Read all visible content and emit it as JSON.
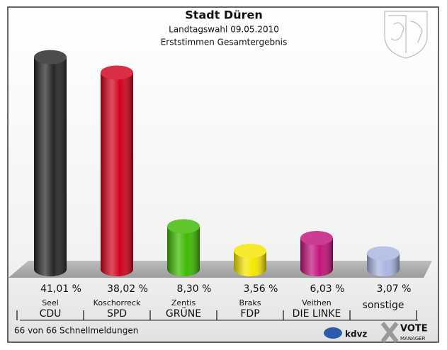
{
  "chart_data": {
    "type": "bar",
    "title": "Stadt Düren",
    "subtitle": [
      "Landtagswahl 09.05.2010",
      "Erststimmen Gesamtergebnis"
    ],
    "categories": [
      "CDU",
      "SPD",
      "GRÜNE",
      "FDP",
      "DIE LINKE",
      "sonstige"
    ],
    "candidates": [
      "Seel",
      "Koschorreck",
      "Zentis",
      "Braks",
      "Veithen",
      null
    ],
    "values": [
      41.01,
      38.02,
      8.3,
      3.56,
      6.03,
      3.07
    ],
    "value_labels": [
      "41,01 %",
      "38,02 %",
      "8,30 %",
      "3,56 %",
      "6,03 %",
      "3,07 %"
    ],
    "colors": [
      "#262626",
      "#d2001c",
      "#3cba00",
      "#f6e600",
      "#c3127c",
      "#a9b5e2"
    ],
    "footer": "66 von 66 Schnellmeldungen",
    "logos": [
      "kdvz",
      "VOTE",
      "MANAGER"
    ]
  }
}
